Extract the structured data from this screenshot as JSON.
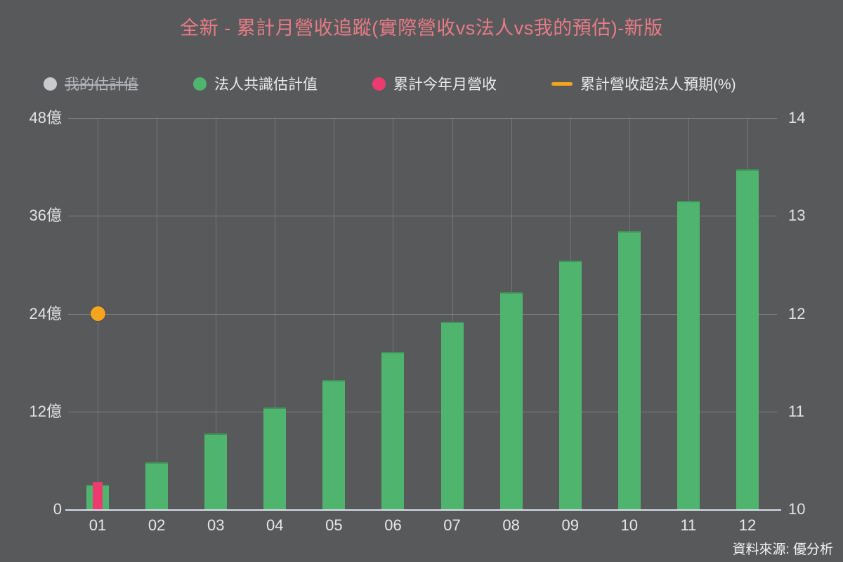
{
  "title": "全新 - 累計月營收追蹤(實際營收vs法人vs我的預估)-新版",
  "source": "資料來源: 優分析",
  "colors": {
    "background": "#58595b",
    "title": "#e87b86",
    "bar_green": "#4fb56e",
    "bar_pink": "#ee3b6f",
    "dot_orange": "#f5a51d",
    "legend_gray": "#c9cacd",
    "axis_text": "#e3e3e3"
  },
  "legend": [
    {
      "label": "我的估計值",
      "color": "#c9cacd",
      "swatch": "circle",
      "disabled": true
    },
    {
      "label": "法人共識估計值",
      "color": "#4fb56e",
      "swatch": "circle",
      "disabled": false
    },
    {
      "label": "累計今年月營收",
      "color": "#ee3b6f",
      "swatch": "circle",
      "disabled": false
    },
    {
      "label": "累計營收超法人預期(%)",
      "color": "#f5a51d",
      "swatch": "line",
      "disabled": false
    }
  ],
  "chart_data": {
    "type": "bar",
    "title": "全新 - 累計月營收追蹤(實際營收vs法人vs我的預估)-新版",
    "categories": [
      "01",
      "02",
      "03",
      "04",
      "05",
      "06",
      "07",
      "08",
      "09",
      "10",
      "11",
      "12"
    ],
    "series": [
      {
        "name": "法人共識估計值",
        "type": "bar",
        "axis": "left",
        "color": "#4fb56e",
        "values": [
          3.0,
          5.8,
          9.3,
          12.5,
          15.9,
          19.3,
          23.0,
          26.6,
          30.5,
          34.1,
          37.8,
          41.7
        ]
      },
      {
        "name": "累計今年月營收",
        "type": "bar",
        "axis": "left",
        "color": "#ee3b6f",
        "values": [
          3.4,
          null,
          null,
          null,
          null,
          null,
          null,
          null,
          null,
          null,
          null,
          null
        ]
      },
      {
        "name": "累計營收超法人預期(%)",
        "type": "point",
        "axis": "right",
        "color": "#f5a51d",
        "values": [
          12.0,
          null,
          null,
          null,
          null,
          null,
          null,
          null,
          null,
          null,
          null,
          null
        ]
      },
      {
        "name": "我的估計值",
        "type": "bar",
        "axis": "left",
        "color": "#c9cacd",
        "hidden": true,
        "values": [
          null,
          null,
          null,
          null,
          null,
          null,
          null,
          null,
          null,
          null,
          null,
          null
        ]
      }
    ],
    "left_axis": {
      "min": 0,
      "max": 48,
      "ticks": [
        {
          "v": 0,
          "label": "0"
        },
        {
          "v": 12,
          "label": "12億"
        },
        {
          "v": 24,
          "label": "24億"
        },
        {
          "v": 36,
          "label": "36億"
        },
        {
          "v": 48,
          "label": "48億"
        }
      ]
    },
    "right_axis": {
      "min": 10,
      "max": 14,
      "ticks": [
        {
          "v": 10,
          "label": "10"
        },
        {
          "v": 11,
          "label": "11"
        },
        {
          "v": 12,
          "label": "12"
        },
        {
          "v": 13,
          "label": "13"
        },
        {
          "v": 14,
          "label": "14"
        }
      ]
    },
    "grid": true,
    "legend_position": "top"
  }
}
